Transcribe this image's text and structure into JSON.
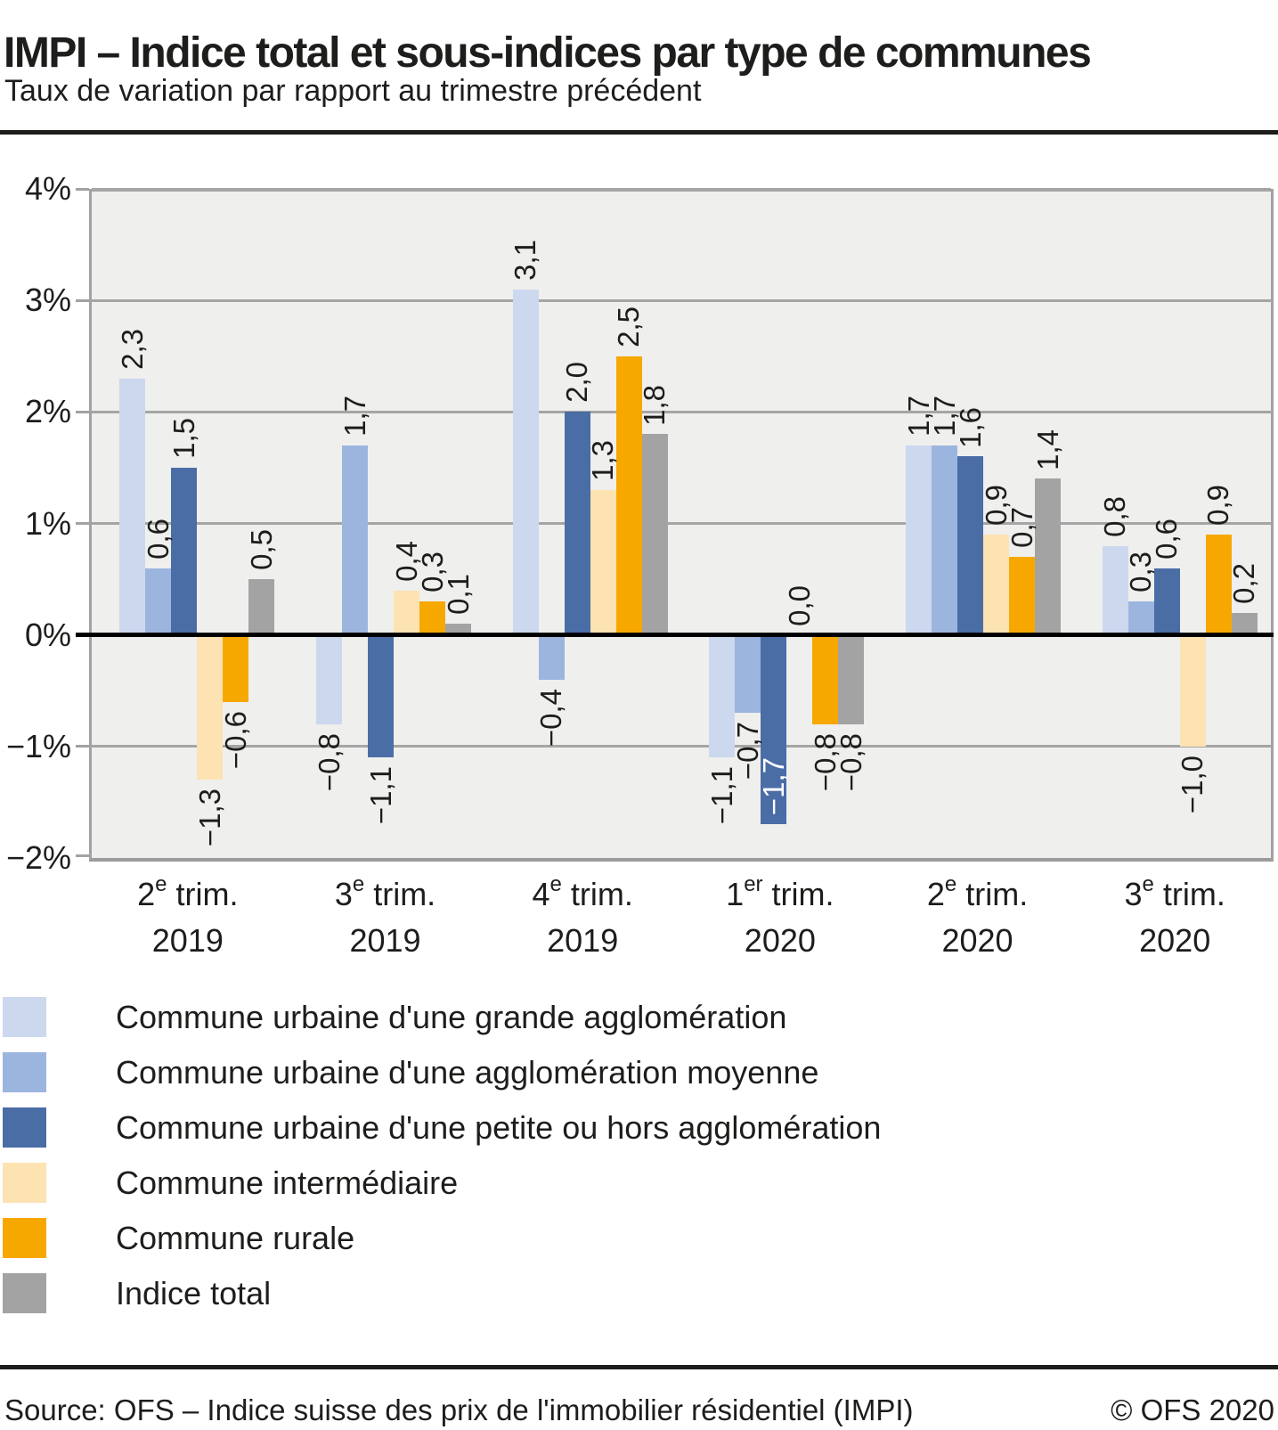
{
  "header": {
    "title": "IMPI – Indice total et sous-indices par type de communes",
    "subtitle": "Taux de variation par rapport au trimestre précédent"
  },
  "chart_data": {
    "type": "bar",
    "unit": "%",
    "ylim": [
      -2,
      4
    ],
    "grid": true,
    "legend_position": "bottom-left",
    "decimal_separator": ",",
    "minus_sign": "−",
    "yticks": [
      {
        "value": 4,
        "label": "4%"
      },
      {
        "value": 3,
        "label": "3%"
      },
      {
        "value": 2,
        "label": "2%"
      },
      {
        "value": 1,
        "label": "1%"
      },
      {
        "value": 0,
        "label": "0%"
      },
      {
        "value": -1,
        "label": "−1%"
      },
      {
        "value": -2,
        "label": "−2%"
      }
    ],
    "categories": [
      {
        "num": "2",
        "sup": "e",
        "rest": "trim.",
        "year": "2019"
      },
      {
        "num": "3",
        "sup": "e",
        "rest": "trim.",
        "year": "2019"
      },
      {
        "num": "4",
        "sup": "e",
        "rest": "trim.",
        "year": "2019"
      },
      {
        "num": "1",
        "sup": "er",
        "rest": "trim.",
        "year": "2020"
      },
      {
        "num": "2",
        "sup": "e",
        "rest": "trim.",
        "year": "2020"
      },
      {
        "num": "3",
        "sup": "e",
        "rest": "trim.",
        "year": "2020"
      }
    ],
    "series": [
      {
        "name": "Commune urbaine d'une grande agglomération",
        "color": "#ccd8ee",
        "values": [
          2.3,
          -0.8,
          3.1,
          -1.1,
          1.7,
          0.8
        ]
      },
      {
        "name": "Commune urbaine d'une agglomération moyenne",
        "color": "#9cb5de",
        "values": [
          0.6,
          1.7,
          -0.4,
          -0.7,
          1.7,
          0.3
        ]
      },
      {
        "name": "Commune urbaine d'une petite ou hors agglomération",
        "color": "#4a6da6",
        "values": [
          1.5,
          -1.1,
          2.0,
          -1.7,
          1.6,
          0.6
        ]
      },
      {
        "name": "Commune intermédiaire",
        "color": "#fde2b2",
        "values": [
          -1.3,
          0.4,
          1.3,
          0.0,
          0.9,
          -1.0
        ]
      },
      {
        "name": "Commune rurale",
        "color": "#f7a800",
        "values": [
          -0.6,
          0.3,
          2.5,
          -0.8,
          0.7,
          0.9
        ]
      },
      {
        "name": "Indice total",
        "color": "#a3a3a3",
        "values": [
          0.5,
          0.1,
          1.8,
          -0.8,
          1.4,
          0.2
        ]
      }
    ],
    "value_labels_inside_white": [
      {
        "series": 2,
        "category": 3
      }
    ]
  },
  "footer": {
    "source": "Source: OFS – Indice suisse des prix de l'immobilier résidentiel (IMPI)",
    "copyright": "© OFS 2020"
  }
}
